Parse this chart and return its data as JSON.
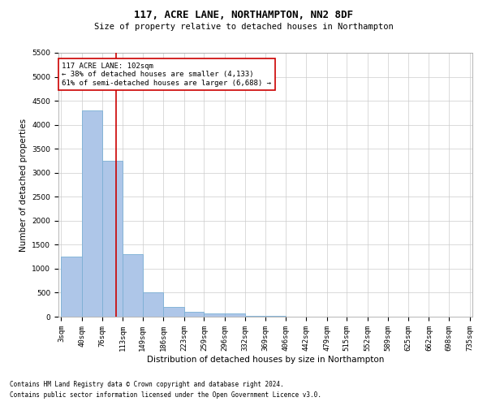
{
  "title": "117, ACRE LANE, NORTHAMPTON, NN2 8DF",
  "subtitle": "Size of property relative to detached houses in Northampton",
  "xlabel": "Distribution of detached houses by size in Northampton",
  "ylabel": "Number of detached properties",
  "footnote1": "Contains HM Land Registry data © Crown copyright and database right 2024.",
  "footnote2": "Contains public sector information licensed under the Open Government Licence v3.0.",
  "annotation_line1": "117 ACRE LANE: 102sqm",
  "annotation_line2": "← 38% of detached houses are smaller (4,133)",
  "annotation_line3": "61% of semi-detached houses are larger (6,688) →",
  "property_size": 102,
  "bar_edges": [
    3,
    40,
    76,
    113,
    149,
    186,
    223,
    259,
    296,
    332,
    369,
    406,
    442,
    479,
    515,
    552,
    589,
    625,
    662,
    698,
    735
  ],
  "bar_heights": [
    1250,
    4300,
    3250,
    1300,
    500,
    200,
    100,
    75,
    60,
    20,
    10,
    5,
    3,
    2,
    1,
    0,
    0,
    0,
    0,
    0
  ],
  "bar_color": "#aec6e8",
  "bar_edge_color": "#7bafd4",
  "vline_color": "#cc0000",
  "vline_x": 102,
  "ylim": [
    0,
    5500
  ],
  "yticks": [
    0,
    500,
    1000,
    1500,
    2000,
    2500,
    3000,
    3500,
    4000,
    4500,
    5000,
    5500
  ],
  "grid_color": "#cccccc",
  "bg_color": "#ffffff",
  "annotation_box_color": "#cc0000",
  "title_fontsize": 9,
  "subtitle_fontsize": 7.5,
  "axis_label_fontsize": 7.5,
  "tick_label_fontsize": 6.5,
  "annotation_fontsize": 6.5,
  "footnote_fontsize": 5.5
}
